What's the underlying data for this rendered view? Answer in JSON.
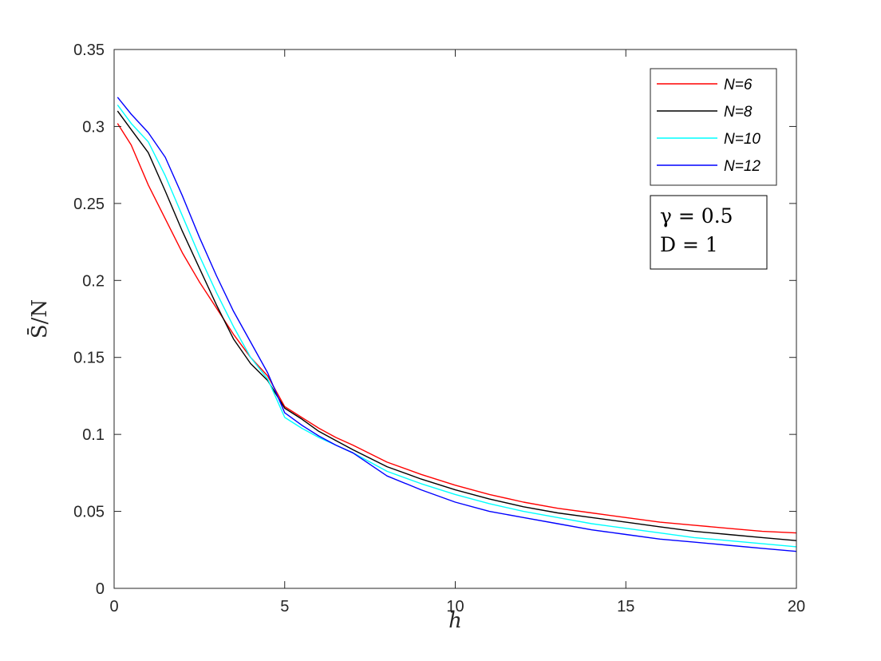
{
  "chart_data": {
    "type": "line",
    "title": "",
    "xlabel": "h",
    "ylabel": "S̄/N",
    "xlim": [
      0,
      20
    ],
    "ylim": [
      0,
      0.35
    ],
    "xticks": [
      0,
      5,
      10,
      15,
      20
    ],
    "xtick_labels": [
      "0",
      "5",
      "10",
      "15",
      "20"
    ],
    "yticks": [
      0,
      0.05,
      0.1,
      0.15,
      0.2,
      0.25,
      0.3,
      0.35
    ],
    "ytick_labels": [
      "0",
      "0.05",
      "0.1",
      "0.15",
      "0.2",
      "0.25",
      "0.3",
      "0.35"
    ],
    "grid": false,
    "legend_position": "top-right",
    "x": [
      0.1,
      0.5,
      1,
      1.5,
      2,
      2.5,
      3,
      3.5,
      4,
      4.5,
      5,
      5.5,
      6,
      6.5,
      7,
      8,
      9,
      10,
      11,
      12,
      13,
      14,
      15,
      16,
      17,
      18,
      19,
      20
    ],
    "series": [
      {
        "name": "N=6",
        "color": "#ff0000",
        "values": [
          0.302,
          0.288,
          0.262,
          0.24,
          0.218,
          0.199,
          0.182,
          0.165,
          0.15,
          0.138,
          0.118,
          0.111,
          0.104,
          0.098,
          0.093,
          0.082,
          0.074,
          0.067,
          0.061,
          0.056,
          0.052,
          0.049,
          0.046,
          0.043,
          0.041,
          0.039,
          0.037,
          0.036
        ]
      },
      {
        "name": "N=8",
        "color": "#000000",
        "values": [
          0.31,
          0.298,
          0.283,
          0.258,
          0.232,
          0.208,
          0.184,
          0.162,
          0.146,
          0.135,
          0.117,
          0.11,
          0.102,
          0.096,
          0.09,
          0.079,
          0.071,
          0.064,
          0.058,
          0.053,
          0.049,
          0.046,
          0.043,
          0.04,
          0.037,
          0.035,
          0.033,
          0.031
        ]
      },
      {
        "name": "N=10",
        "color": "#00ffff",
        "values": [
          0.314,
          0.302,
          0.29,
          0.268,
          0.242,
          0.216,
          0.192,
          0.17,
          0.15,
          0.136,
          0.111,
          0.104,
          0.098,
          0.093,
          0.088,
          0.076,
          0.068,
          0.061,
          0.055,
          0.05,
          0.046,
          0.042,
          0.039,
          0.036,
          0.033,
          0.031,
          0.029,
          0.027
        ]
      },
      {
        "name": "N=12",
        "color": "#0000ff",
        "values": [
          0.319,
          0.308,
          0.296,
          0.28,
          0.255,
          0.228,
          0.203,
          0.18,
          0.16,
          0.14,
          0.114,
          0.106,
          0.099,
          0.093,
          0.088,
          0.073,
          0.064,
          0.056,
          0.05,
          0.046,
          0.042,
          0.038,
          0.035,
          0.032,
          0.03,
          0.028,
          0.026,
          0.024
        ]
      }
    ],
    "annotation": {
      "gamma_label": "γ = 0.5",
      "d_label": "D = 1"
    }
  }
}
